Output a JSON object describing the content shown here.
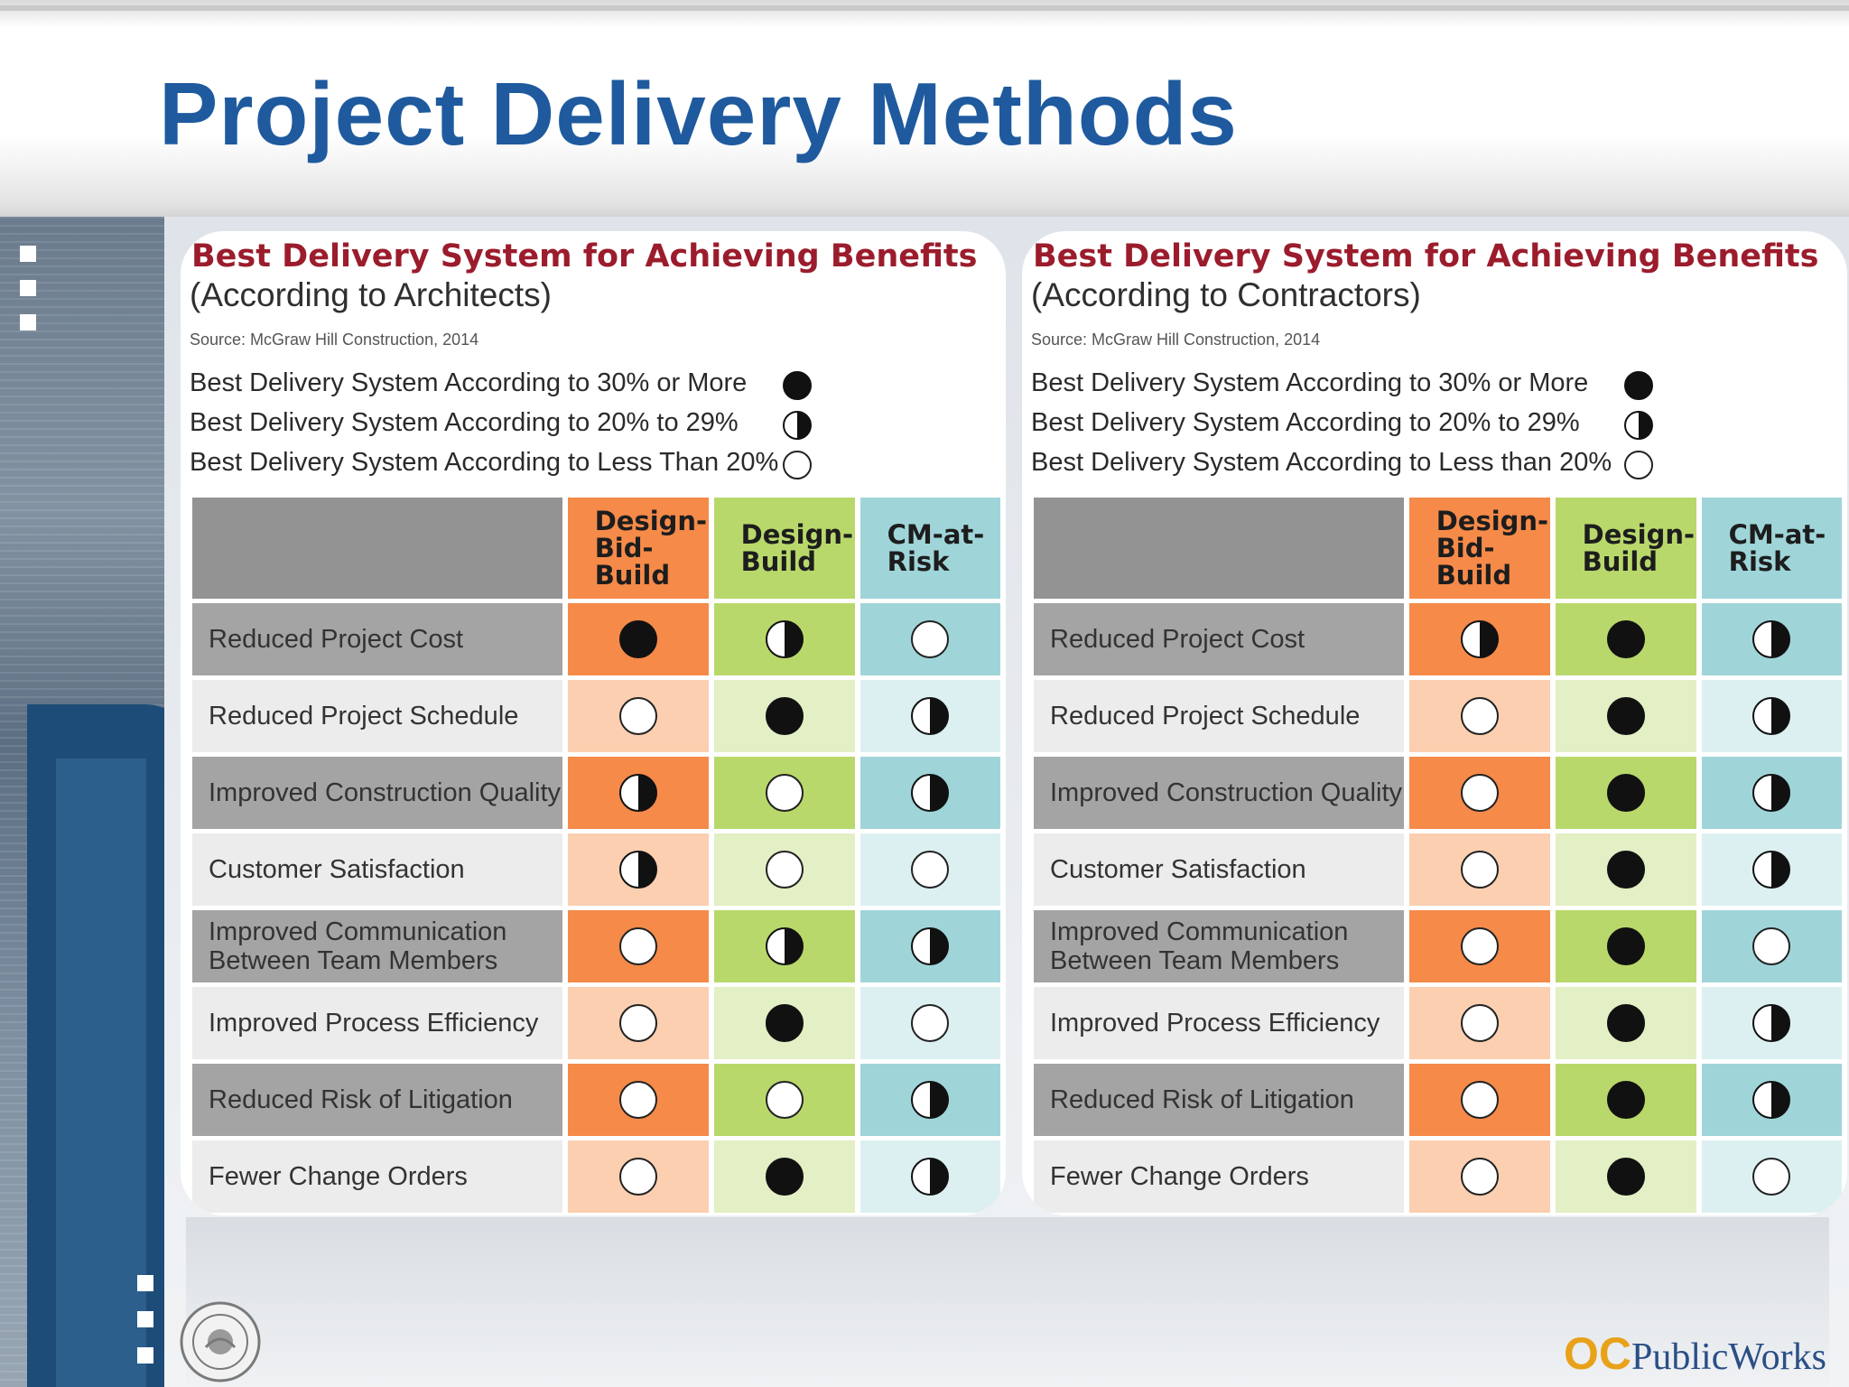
{
  "slide": {
    "title": "Project Delivery Methods",
    "logo_text_oc": "OC",
    "logo_text_pw": "PublicWorks"
  },
  "colors": {
    "title": "#1f5a9e",
    "panel_title": "#9b1c2c",
    "dbb_dark": "#f58a49",
    "dbb_light": "#fbcfb0",
    "db_dark": "#b9d86b",
    "db_light": "#e3efc4",
    "cmr_dark": "#9fd5d9",
    "cmr_light": "#dcf0f1"
  },
  "legend_key": {
    "full": "30% or more",
    "half": "20% to 29%",
    "empty": "less than 20%"
  },
  "panels": [
    {
      "title": "Best Delivery System for Achieving Benefits",
      "subtitle": "(According to Architects)",
      "source": "Source: McGraw Hill Construction, 2014",
      "legend": [
        {
          "label": "Best Delivery System According to 30% or More",
          "mark": "full"
        },
        {
          "label": "Best Delivery System According to 20% to 29%",
          "mark": "half"
        },
        {
          "label": "Best Delivery System According to Less Than 20%",
          "mark": "empty"
        }
      ],
      "columns": [
        {
          "lines": [
            "Design-",
            "Bid-",
            "Build"
          ]
        },
        {
          "lines": [
            "Design-",
            "Build"
          ]
        },
        {
          "lines": [
            "CM-at-",
            "Risk"
          ]
        }
      ],
      "rows": [
        {
          "lines": [
            "Reduced Project Cost"
          ],
          "marks": [
            "full",
            "half",
            "empty"
          ]
        },
        {
          "lines": [
            "Reduced Project Schedule"
          ],
          "marks": [
            "empty",
            "full",
            "half"
          ]
        },
        {
          "lines": [
            "Improved Construction Quality"
          ],
          "marks": [
            "half",
            "empty",
            "half"
          ]
        },
        {
          "lines": [
            "Customer Satisfaction"
          ],
          "marks": [
            "half",
            "empty",
            "empty"
          ]
        },
        {
          "lines": [
            "Improved Communication",
            "Between Team Members"
          ],
          "marks": [
            "empty",
            "half",
            "half"
          ]
        },
        {
          "lines": [
            "Improved Process Efficiency"
          ],
          "marks": [
            "empty",
            "full",
            "empty"
          ]
        },
        {
          "lines": [
            "Reduced Risk of Litigation"
          ],
          "marks": [
            "empty",
            "empty",
            "half"
          ]
        },
        {
          "lines": [
            "Fewer Change Orders"
          ],
          "marks": [
            "empty",
            "full",
            "half"
          ]
        }
      ]
    },
    {
      "title": "Best Delivery System for Achieving Benefits",
      "subtitle": "(According to Contractors)",
      "source": "Source: McGraw Hill Construction, 2014",
      "legend": [
        {
          "label": "Best Delivery System According to 30% or More",
          "mark": "full"
        },
        {
          "label": "Best Delivery System According to 20% to 29%",
          "mark": "half"
        },
        {
          "label": "Best Delivery System According to Less than 20%",
          "mark": "empty"
        }
      ],
      "columns": [
        {
          "lines": [
            "Design-",
            "Bid-",
            "Build"
          ]
        },
        {
          "lines": [
            "Design-",
            "Build"
          ]
        },
        {
          "lines": [
            "CM-at-",
            "Risk"
          ]
        }
      ],
      "rows": [
        {
          "lines": [
            "Reduced Project Cost"
          ],
          "marks": [
            "half",
            "full",
            "half"
          ]
        },
        {
          "lines": [
            "Reduced Project Schedule"
          ],
          "marks": [
            "empty",
            "full",
            "half"
          ]
        },
        {
          "lines": [
            "Improved Construction Quality"
          ],
          "marks": [
            "empty",
            "full",
            "half"
          ]
        },
        {
          "lines": [
            "Customer Satisfaction"
          ],
          "marks": [
            "empty",
            "full",
            "half"
          ]
        },
        {
          "lines": [
            "Improved Communication",
            "Between Team Members"
          ],
          "marks": [
            "empty",
            "full",
            "empty"
          ]
        },
        {
          "lines": [
            "Improved Process Efficiency"
          ],
          "marks": [
            "empty",
            "full",
            "half"
          ]
        },
        {
          "lines": [
            "Reduced Risk of Litigation"
          ],
          "marks": [
            "empty",
            "full",
            "half"
          ]
        },
        {
          "lines": [
            "Fewer Change Orders"
          ],
          "marks": [
            "empty",
            "full",
            "empty"
          ]
        }
      ]
    }
  ]
}
